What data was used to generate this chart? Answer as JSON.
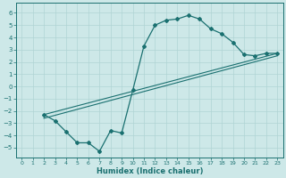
{
  "xlabel": "Humidex (Indice chaleur)",
  "bg_color": "#cde8e8",
  "grid_color": "#b0d4d4",
  "line_color": "#1a7070",
  "xlim": [
    -0.5,
    23.5
  ],
  "ylim": [
    -5.8,
    6.8
  ],
  "xticks": [
    0,
    1,
    2,
    3,
    4,
    5,
    6,
    7,
    8,
    9,
    10,
    11,
    12,
    13,
    14,
    15,
    16,
    17,
    18,
    19,
    20,
    21,
    22,
    23
  ],
  "yticks": [
    -5,
    -4,
    -3,
    -2,
    -1,
    0,
    1,
    2,
    3,
    4,
    5,
    6
  ],
  "curve1_x": [
    2,
    3,
    4,
    5,
    6,
    7,
    8,
    9,
    10,
    11,
    12,
    13,
    14,
    15,
    16,
    17,
    18,
    19,
    20,
    21,
    22,
    23
  ],
  "curve1_y": [
    -2.3,
    -2.8,
    -3.7,
    -4.6,
    -4.6,
    -5.3,
    -3.6,
    -3.8,
    -0.3,
    3.3,
    5.0,
    5.4,
    5.5,
    5.8,
    5.5,
    4.7,
    4.3,
    3.6,
    2.6,
    2.5,
    2.7,
    2.7
  ],
  "line1_x": [
    2,
    23
  ],
  "line1_y": [
    -2.3,
    2.7
  ],
  "line2_x": [
    2,
    23
  ],
  "line2_y": [
    -2.6,
    2.5
  ]
}
